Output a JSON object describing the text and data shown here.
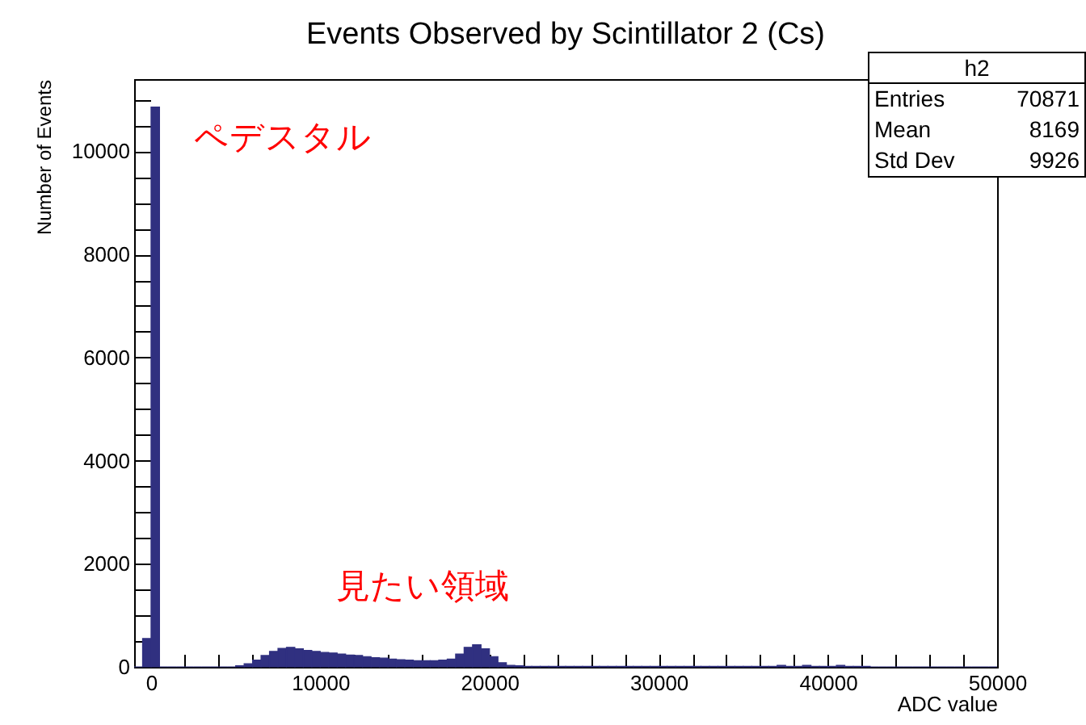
{
  "chart_data": {
    "type": "histogram",
    "title": "Events Observed by Scintillator 2 (Cs)",
    "xlabel": "ADC value",
    "ylabel": "Number of Events",
    "color": "#303080",
    "bins": [
      -1000,
      -500,
      0,
      500,
      1000,
      1500,
      2000,
      2500,
      3000,
      3500,
      4000,
      4500,
      5000,
      5500,
      6000,
      6500,
      7000,
      7500,
      8000,
      8500,
      9000,
      9500,
      10000,
      10500,
      11000,
      11500,
      12000,
      12500,
      13000,
      13500,
      14000,
      14500,
      15000,
      15500,
      16000,
      16500,
      17000,
      17500,
      18000,
      18500,
      19000,
      19500,
      20000,
      20500,
      21000,
      21500,
      22000,
      22500,
      23000,
      23500,
      24000,
      24500,
      25000,
      25500,
      26000,
      26500,
      27000,
      27500,
      28000,
      28500,
      29000,
      29500,
      30000,
      30500,
      31000,
      31500,
      32000,
      32500,
      33000,
      33500,
      34000,
      34500,
      35000,
      35500,
      36000,
      36500,
      37000,
      37500,
      38000,
      38500,
      39000,
      39500,
      40000,
      40500,
      41000,
      41500,
      42000,
      42500,
      43000,
      43500,
      44000,
      44500,
      45000,
      45500,
      46000,
      46500,
      47000,
      47500,
      48000,
      48500,
      49000,
      49500,
      50000
    ],
    "values": [
      0,
      550,
      10860,
      0,
      0,
      0,
      0,
      0,
      0,
      0,
      0,
      0,
      20,
      60,
      130,
      220,
      300,
      360,
      380,
      350,
      320,
      300,
      280,
      270,
      250,
      230,
      220,
      200,
      180,
      170,
      150,
      140,
      130,
      120,
      120,
      120,
      130,
      150,
      250,
      380,
      430,
      350,
      200,
      80,
      30,
      20,
      10,
      10,
      10,
      10,
      10,
      10,
      10,
      10,
      10,
      10,
      10,
      10,
      10,
      10,
      10,
      10,
      10,
      10,
      10,
      10,
      10,
      10,
      10,
      10,
      10,
      10,
      10,
      10,
      10,
      10,
      30,
      10,
      10,
      30,
      10,
      10,
      10,
      30,
      10,
      10,
      10,
      0,
      0,
      0,
      0,
      0,
      0,
      0,
      0,
      0,
      0,
      0,
      0,
      0,
      0,
      0
    ],
    "xlim": [
      -1000,
      50000
    ],
    "ylim": [
      0,
      11400
    ],
    "xticks": [
      0,
      {
        "value": 2000,
        "label": null
      },
      {
        "value": 4000,
        "label": null
      },
      {
        "value": 6000,
        "label": null
      },
      {
        "value": 8000,
        "label": null
      },
      10000,
      {
        "value": 12000,
        "label": null
      },
      {
        "value": 14000,
        "label": null
      },
      {
        "value": 16000,
        "label": null
      },
      {
        "value": 18000,
        "label": null
      },
      20000,
      {
        "value": 22000,
        "label": null
      },
      {
        "value": 24000,
        "label": null
      },
      {
        "value": 26000,
        "label": null
      },
      {
        "value": 28000,
        "label": null
      },
      30000,
      {
        "value": 32000,
        "label": null
      },
      {
        "value": 34000,
        "label": null
      },
      {
        "value": 36000,
        "label": null
      },
      {
        "value": 38000,
        "label": null
      },
      40000,
      {
        "value": 42000,
        "label": null
      },
      {
        "value": 44000,
        "label": null
      },
      {
        "value": 46000,
        "label": null
      },
      {
        "value": 48000,
        "label": null
      },
      50000
    ],
    "yticks": [
      0,
      {
        "value": 500,
        "label": null
      },
      {
        "value": 1000,
        "label": null
      },
      {
        "value": 1500,
        "label": null
      },
      2000,
      {
        "value": 2500,
        "label": null
      },
      {
        "value": 3000,
        "label": null
      },
      {
        "value": 3500,
        "label": null
      },
      4000,
      {
        "value": 4500,
        "label": null
      },
      {
        "value": 5000,
        "label": null
      },
      {
        "value": 5500,
        "label": null
      },
      6000,
      {
        "value": 6500,
        "label": null
      },
      {
        "value": 7000,
        "label": null
      },
      {
        "value": 7500,
        "label": null
      },
      8000,
      {
        "value": 8500,
        "label": null
      },
      {
        "value": 9000,
        "label": null
      },
      {
        "value": 9500,
        "label": null
      },
      10000,
      {
        "value": 10500,
        "label": null
      },
      {
        "value": 11000,
        "label": null
      }
    ],
    "annotations": [
      "ペデスタル",
      "見たい領域",
      "h2",
      "Entries 70871",
      "Mean 8169",
      "Std Dev 9926"
    ]
  }
}
